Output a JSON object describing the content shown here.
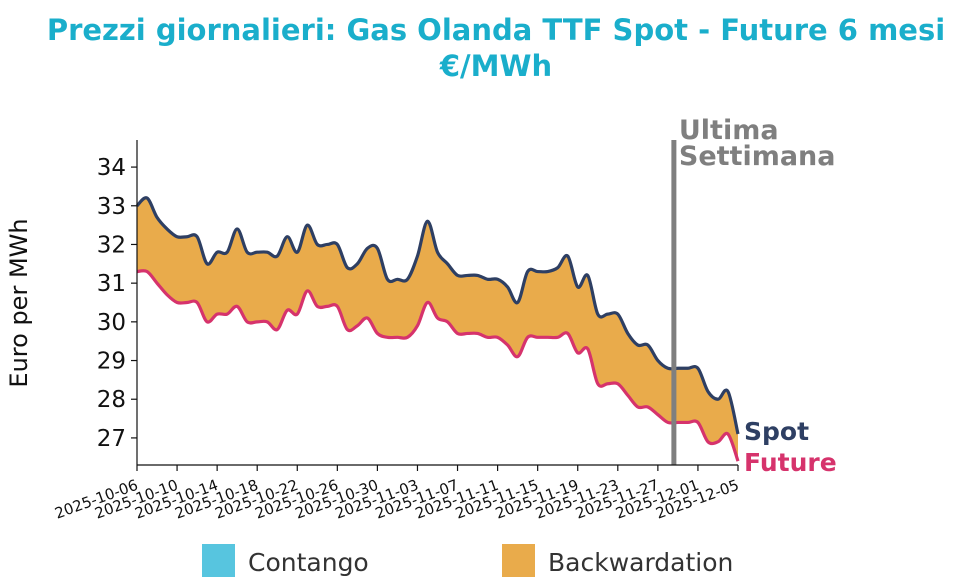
{
  "chart_data": {
    "type": "area",
    "title": "Prezzi giornalieri: Gas Olanda TTF Spot - Future 6 mesi",
    "subtitle": "€/MWh",
    "ylabel": "Euro per MWh",
    "xlabel": "",
    "ylim": [
      26.3,
      34.7
    ],
    "y_ticks": [
      27,
      28,
      29,
      30,
      31,
      32,
      33,
      34
    ],
    "x_range": [
      "2025-10-06",
      "2025-12-05"
    ],
    "x_ticks": [
      "2025-10-06",
      "2025-10-10",
      "2025-10-14",
      "2025-10-18",
      "2025-10-22",
      "2025-10-26",
      "2025-10-30",
      "2025-11-03",
      "2025-11-07",
      "2025-11-11",
      "2025-11-15",
      "2025-11-19",
      "2025-11-23",
      "2025-11-27",
      "2025-12-01",
      "2025-12-05"
    ],
    "x": [
      "2025-10-06",
      "2025-10-07",
      "2025-10-08",
      "2025-10-09",
      "2025-10-10",
      "2025-10-11",
      "2025-10-12",
      "2025-10-13",
      "2025-10-14",
      "2025-10-15",
      "2025-10-16",
      "2025-10-17",
      "2025-10-18",
      "2025-10-19",
      "2025-10-20",
      "2025-10-21",
      "2025-10-22",
      "2025-10-23",
      "2025-10-24",
      "2025-10-25",
      "2025-10-26",
      "2025-10-27",
      "2025-10-28",
      "2025-10-29",
      "2025-10-30",
      "2025-10-31",
      "2025-11-01",
      "2025-11-02",
      "2025-11-03",
      "2025-11-04",
      "2025-11-05",
      "2025-11-06",
      "2025-11-07",
      "2025-11-08",
      "2025-11-09",
      "2025-11-10",
      "2025-11-11",
      "2025-11-12",
      "2025-11-13",
      "2025-11-14",
      "2025-11-15",
      "2025-11-16",
      "2025-11-17",
      "2025-11-18",
      "2025-11-19",
      "2025-11-20",
      "2025-11-21",
      "2025-11-22",
      "2025-11-23",
      "2025-11-24",
      "2025-11-25",
      "2025-11-26",
      "2025-11-27",
      "2025-11-28",
      "2025-11-29",
      "2025-11-30",
      "2025-12-01",
      "2025-12-02",
      "2025-12-03",
      "2025-12-04",
      "2025-12-05"
    ],
    "series": [
      {
        "name": "Spot",
        "color": "#2e3f63",
        "values": [
          33.0,
          33.2,
          32.7,
          32.4,
          32.2,
          32.2,
          32.2,
          31.5,
          31.8,
          31.8,
          32.4,
          31.8,
          31.8,
          31.8,
          31.7,
          32.2,
          31.8,
          32.5,
          32.0,
          32.0,
          32.0,
          31.4,
          31.5,
          31.9,
          31.9,
          31.1,
          31.1,
          31.1,
          31.7,
          32.6,
          31.8,
          31.5,
          31.2,
          31.2,
          31.2,
          31.1,
          31.1,
          30.9,
          30.5,
          31.3,
          31.3,
          31.3,
          31.4,
          31.7,
          30.9,
          31.2,
          30.2,
          30.2,
          30.2,
          29.7,
          29.4,
          29.4,
          29.0,
          28.8,
          28.8,
          28.8,
          28.8,
          28.2,
          28.0,
          28.2,
          27.1
        ]
      },
      {
        "name": "Future",
        "color": "#d6336c",
        "values": [
          31.3,
          31.3,
          31.0,
          30.7,
          30.5,
          30.5,
          30.5,
          30.0,
          30.2,
          30.2,
          30.4,
          30.0,
          30.0,
          30.0,
          29.8,
          30.3,
          30.2,
          30.8,
          30.4,
          30.4,
          30.4,
          29.8,
          29.9,
          30.1,
          29.7,
          29.6,
          29.6,
          29.6,
          29.9,
          30.5,
          30.1,
          30.0,
          29.7,
          29.7,
          29.7,
          29.6,
          29.6,
          29.4,
          29.1,
          29.6,
          29.6,
          29.6,
          29.6,
          29.7,
          29.2,
          29.3,
          28.4,
          28.4,
          28.4,
          28.1,
          27.8,
          27.8,
          27.6,
          27.4,
          27.4,
          27.4,
          27.4,
          26.9,
          26.9,
          27.1,
          26.4
        ]
      }
    ],
    "fill_between": {
      "backwardation_color": "#e9ab4b",
      "contango_color": "#57c5df"
    },
    "annotation": {
      "lines": [
        "Ultima",
        "Settimana"
      ],
      "x": "2025-11-28",
      "color": "#7f7f7f"
    },
    "legend": {
      "placement": "bottom",
      "items": [
        {
          "label": "Contango",
          "color": "#57c5df"
        },
        {
          "label": "Backwardation",
          "color": "#e9ab4b"
        }
      ]
    },
    "grid": false
  }
}
